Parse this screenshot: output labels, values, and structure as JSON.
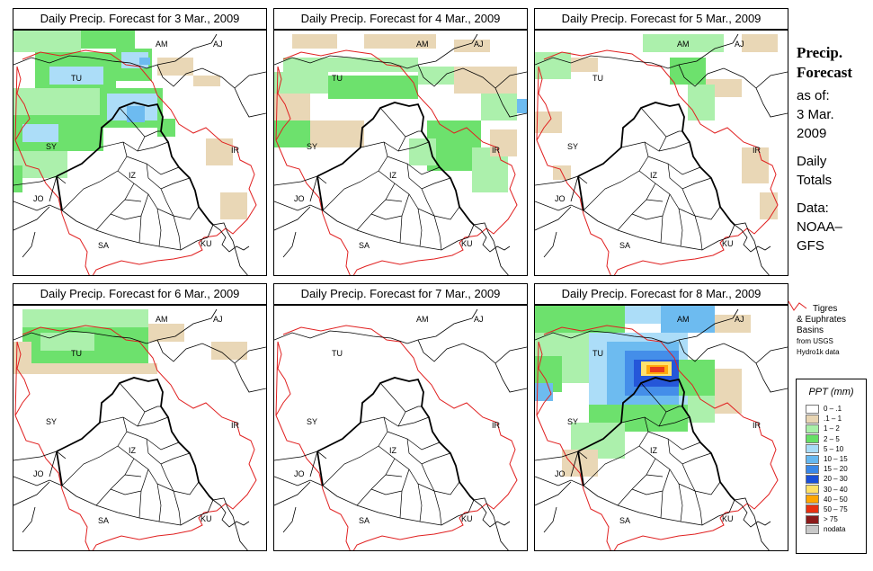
{
  "panels": [
    {
      "title": "Daily Precip. Forecast for  3 Mar., 2009"
    },
    {
      "title": "Daily Precip. Forecast for  4 Mar., 2009"
    },
    {
      "title": "Daily Precip. Forecast for  5 Mar., 2009"
    },
    {
      "title": "Daily Precip. Forecast for  6 Mar., 2009"
    },
    {
      "title": "Daily Precip. Forecast for  7 Mar., 2009"
    },
    {
      "title": "Daily Precip. Forecast for  8 Mar., 2009"
    }
  ],
  "country_labels": {
    "tu": "TU",
    "am": "AM",
    "aj": "AJ",
    "sy": "SY",
    "ir": "IR",
    "iz": "IZ",
    "jo": "JO",
    "sa": "SA",
    "ku": "KU"
  },
  "sidebar": {
    "title_line1": "Precip.",
    "title_line2": "Forecast",
    "asof": "as of:",
    "date_line1": "3 Mar.",
    "date_line2": "2009",
    "daily_line1": "Daily",
    "daily_line2": "Totals",
    "data_line1": "Data:",
    "data_line2": "NOAA–",
    "data_line3": "GFS"
  },
  "basin_note": {
    "line1": "Tigres",
    "line2": "& Euphrates",
    "line3": "Basins",
    "line4": "from USGS",
    "line5": "Hydro1k data"
  },
  "legend": {
    "title": "PPT (mm)",
    "items": [
      {
        "label": "0 – .1",
        "color": "#ffffff"
      },
      {
        "label": ".1 – 1",
        "color": "#e8d5b3"
      },
      {
        "label": "1 – 2",
        "color": "#a8f0a8"
      },
      {
        "label": "2 – 5",
        "color": "#66e066"
      },
      {
        "label": "5 – 10",
        "color": "#a8dcf8"
      },
      {
        "label": "10 – 15",
        "color": "#66b8f0"
      },
      {
        "label": "15 – 20",
        "color": "#3a88e8"
      },
      {
        "label": "20 – 30",
        "color": "#1a4fd8"
      },
      {
        "label": "30 – 40",
        "color": "#ffe066"
      },
      {
        "label": "40 – 50",
        "color": "#ffa500"
      },
      {
        "label": "50 – 75",
        "color": "#e83010"
      },
      {
        "label": "> 75",
        "color": "#8b1a1a"
      },
      {
        "label": "nodata",
        "color": "#c8c8c8"
      }
    ]
  }
}
